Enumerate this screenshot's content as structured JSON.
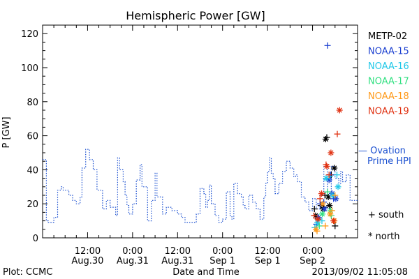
{
  "chart_data": {
    "type": "scatter",
    "title": "Hemispheric Power [GW]",
    "ylabel": "P [GW]",
    "xlabel": "Date and Time",
    "ylim": [
      0,
      125
    ],
    "xlim": [
      0,
      84
    ],
    "x_unit": "hours since Aug.30 00:00",
    "yticks": [
      0,
      20,
      40,
      60,
      80,
      100,
      120
    ],
    "xticks": [
      {
        "x": 12,
        "line1": "12:00",
        "line2": "Aug.30"
      },
      {
        "x": 24,
        "line1": "0:00",
        "line2": "Aug.31"
      },
      {
        "x": 36,
        "line1": "12:00",
        "line2": "Aug.31"
      },
      {
        "x": 48,
        "line1": "0:00",
        "line2": "Sep 1"
      },
      {
        "x": 60,
        "line1": "12:00",
        "line2": "Sep 1"
      },
      {
        "x": 72,
        "line1": "0:00",
        "line2": "Sep 2"
      }
    ],
    "legend": {
      "placement": "right",
      "entries": [
        {
          "name": "METP-02",
          "color": "#000000"
        },
        {
          "name": "NOAA-15",
          "color": "#1a3fd0"
        },
        {
          "name": "NOAA-16",
          "color": "#20c8e8"
        },
        {
          "name": "NOAA-17",
          "color": "#30e080"
        },
        {
          "name": "NOAA-18",
          "color": "#ff9a1a"
        },
        {
          "name": "NOAA-19",
          "color": "#e03010"
        }
      ],
      "ovation_line1": "— Ovation",
      "ovation_line2": "Prime HPI",
      "ovation_color": "#1a4fd0",
      "south_label": "+ south",
      "north_label": "* north"
    },
    "ovation": {
      "name": "Ovation Prime HPI",
      "x": [
        0,
        1,
        1.5,
        3,
        4,
        5,
        5.5,
        7,
        8,
        9,
        10,
        10.5,
        11.5,
        12.5,
        13.5,
        14.5,
        16,
        17,
        18,
        19.5,
        20,
        20.5,
        21.5,
        22,
        22.5,
        23,
        24,
        25,
        26,
        26.5,
        28,
        29,
        30,
        30.5,
        32,
        33,
        34.5,
        36,
        37,
        38,
        39,
        40,
        41,
        42,
        43,
        43.5,
        44,
        44.5,
        45,
        46,
        47,
        48,
        49,
        50,
        50.5,
        51,
        52,
        53,
        53.5,
        54,
        55,
        56,
        57,
        58,
        59,
        59.5,
        60,
        60.5,
        61,
        61.5,
        62,
        63,
        64,
        65,
        66,
        67,
        67.5,
        68,
        69,
        70,
        71,
        72,
        73,
        74,
        75,
        76,
        77,
        78,
        79,
        79.5,
        80,
        81,
        82,
        83
      ],
      "y": [
        46,
        10,
        9,
        12,
        28,
        30,
        28,
        25,
        22,
        20,
        24,
        41,
        52,
        46,
        40,
        28,
        17,
        22,
        18,
        13,
        47,
        40,
        33,
        25,
        19,
        14,
        20,
        34,
        43,
        30,
        10,
        22,
        38,
        24,
        14,
        18,
        16,
        14,
        12,
        9,
        9,
        9,
        14,
        29,
        26,
        18,
        22,
        31,
        20,
        13,
        9,
        11,
        27,
        13,
        11,
        32,
        26,
        24,
        19,
        17,
        25,
        21,
        17,
        11,
        24,
        32,
        39,
        47,
        38,
        35,
        26,
        32,
        39,
        45,
        41,
        36,
        37,
        33,
        24,
        21,
        16,
        23,
        17,
        25,
        42,
        27,
        42,
        35,
        32,
        39,
        33,
        37,
        22,
        22
      ]
    },
    "series": [
      {
        "name": "METP-02",
        "color": "#000000",
        "south": [
          [
            72.5,
            17
          ],
          [
            73.5,
            11
          ],
          [
            74.2,
            19
          ],
          [
            75,
            18
          ],
          [
            75.8,
            59
          ],
          [
            77,
            37
          ],
          [
            78,
            7
          ],
          [
            75.3,
            25
          ]
        ],
        "north": [
          [
            72.8,
            13
          ],
          [
            74.8,
            17
          ],
          [
            75.5,
            58
          ],
          [
            76.2,
            24
          ],
          [
            77.8,
            41
          ],
          [
            76.5,
            19
          ]
        ]
      },
      {
        "name": "NOAA-15",
        "color": "#1a3fd0",
        "south": [
          [
            73,
            8
          ],
          [
            74,
            20
          ],
          [
            75,
            21
          ],
          [
            76,
            113
          ],
          [
            76.8,
            37
          ],
          [
            77.6,
            23
          ]
        ],
        "north": [
          [
            73.6,
            12
          ],
          [
            75.2,
            17
          ],
          [
            76.4,
            34
          ],
          [
            77.2,
            26
          ],
          [
            78.2,
            23
          ]
        ]
      },
      {
        "name": "NOAA-16",
        "color": "#20c8e8",
        "south": [
          [
            72.6,
            6
          ],
          [
            74.5,
            10
          ],
          [
            76.6,
            36
          ],
          [
            78.5,
            37
          ]
        ],
        "north": [
          [
            73.3,
            9
          ],
          [
            75.6,
            35
          ],
          [
            77.4,
            25
          ],
          [
            78.8,
            30
          ]
        ]
      },
      {
        "name": "NOAA-17",
        "color": "#30e080",
        "south": [
          [
            73.8,
            7
          ],
          [
            76,
            27
          ],
          [
            77,
            13
          ]
        ],
        "north": [
          [
            74.6,
            14
          ],
          [
            76.8,
            16
          ]
        ]
      },
      {
        "name": "NOAA-18",
        "color": "#ff9a1a",
        "south": [
          [
            73.2,
            4
          ],
          [
            75.4,
            7
          ],
          [
            77.2,
            16
          ],
          [
            78,
            25
          ]
        ],
        "north": [
          [
            72.9,
            5
          ],
          [
            74.7,
            20
          ],
          [
            76.7,
            14
          ],
          [
            77.8,
            10
          ]
        ]
      },
      {
        "name": "NOAA-19",
        "color": "#e03010",
        "south": [
          [
            72.4,
            13
          ],
          [
            74,
            23
          ],
          [
            75.6,
            43
          ],
          [
            76.4,
            37
          ],
          [
            78.6,
            61
          ]
        ],
        "north": [
          [
            73.4,
            11
          ],
          [
            74.4,
            26
          ],
          [
            75.8,
            42
          ],
          [
            76.9,
            50
          ],
          [
            77.6,
            10
          ],
          [
            79.2,
            75
          ]
        ]
      }
    ]
  },
  "footer": {
    "plot_label": "Plot: CCMC",
    "timestamp": "2013/09/02 11:05:08"
  }
}
